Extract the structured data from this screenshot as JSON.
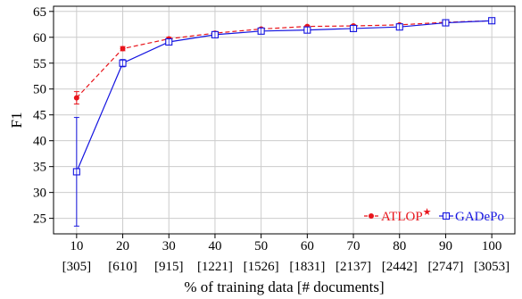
{
  "chart_data": {
    "type": "line",
    "ylabel": "F1",
    "xlabel": "% of training data [# documents]",
    "x": [
      10,
      20,
      30,
      40,
      50,
      60,
      70,
      80,
      90,
      100
    ],
    "x_secondary_labels": [
      "[305]",
      "[610]",
      "[915]",
      "[1221]",
      "[1526]",
      "[1831]",
      "[2137]",
      "[2442]",
      "[2747]",
      "[3053]"
    ],
    "ylim": [
      22,
      66
    ],
    "yticks": [
      25,
      30,
      35,
      40,
      45,
      50,
      55,
      60,
      65
    ],
    "grid": true,
    "legend_position": "bottom-right",
    "series": [
      {
        "name": "ATLOP",
        "name_marker": "★",
        "color": "#e8141b",
        "line_style": "dashed",
        "marker": "filled-circle",
        "values": [
          48.3,
          57.8,
          59.7,
          60.8,
          61.6,
          62.1,
          62.2,
          62.4,
          62.9,
          63.2
        ],
        "error": [
          1.2,
          0.4,
          0.3,
          0.3,
          0.2,
          0.2,
          0.2,
          0.2,
          0.2,
          0.1
        ]
      },
      {
        "name": "GADePo",
        "color": "#1414e0",
        "line_style": "solid",
        "marker": "open-square",
        "values": [
          34.0,
          55.0,
          59.1,
          60.5,
          61.2,
          61.4,
          61.7,
          62.0,
          62.8,
          63.2
        ],
        "error": [
          10.5,
          0.7,
          0.5,
          0.3,
          0.3,
          0.4,
          0.4,
          0.3,
          0.2,
          0.1
        ]
      }
    ]
  }
}
